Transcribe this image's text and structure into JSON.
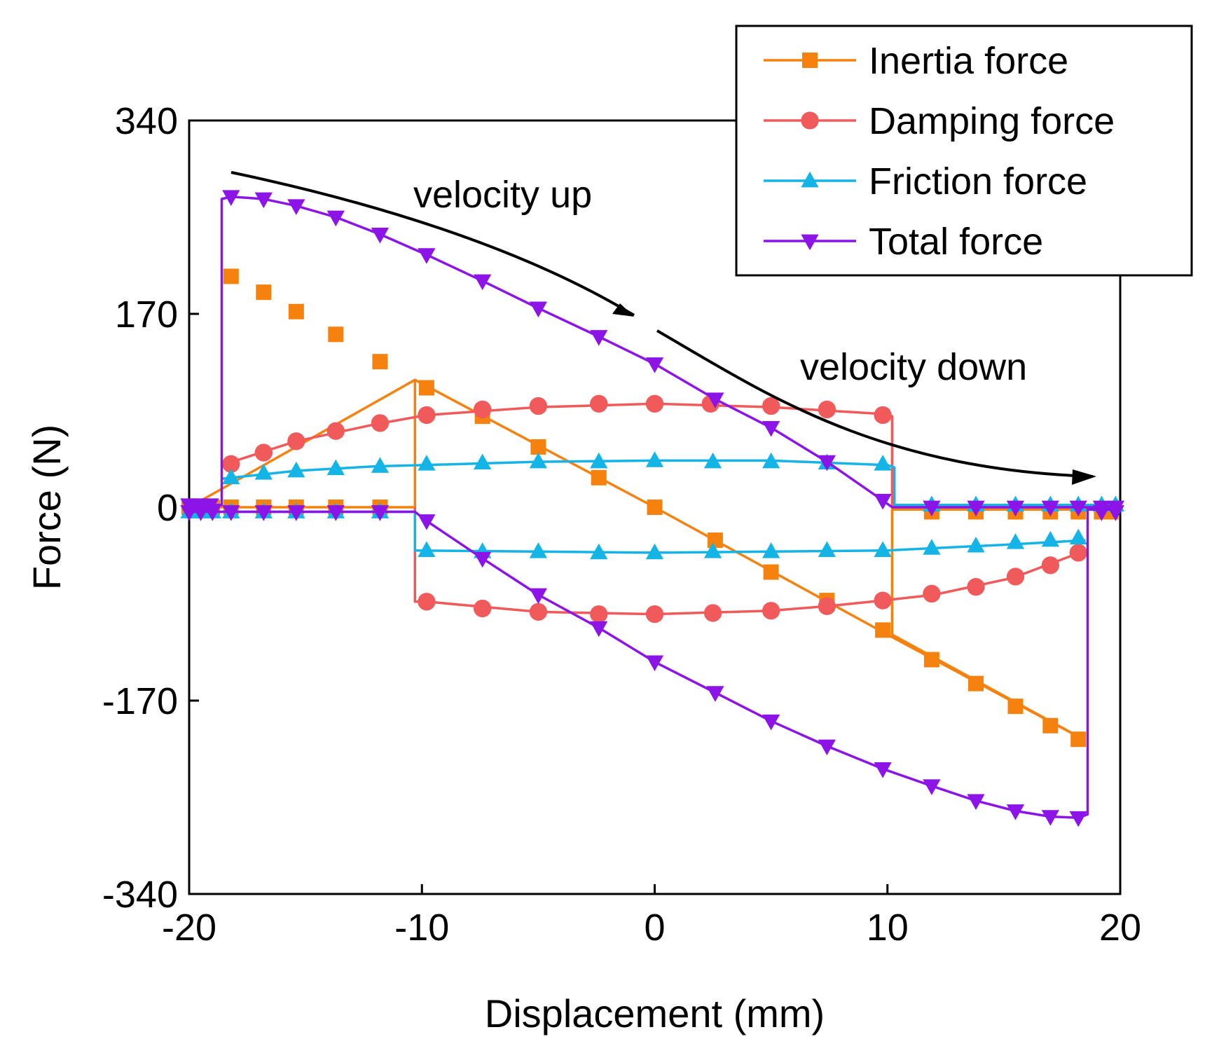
{
  "chart_data": {
    "type": "line",
    "title": "",
    "xlabel": "Displacement (mm)",
    "ylabel": "Force (N)",
    "xlim": [
      -20,
      20
    ],
    "ylim": [
      -340,
      340
    ],
    "xticks": [
      "-20",
      "-10",
      "0",
      "10",
      "20"
    ],
    "yticks": [
      "-340",
      "-170",
      "0",
      "170",
      "340"
    ],
    "legend_position": "top-right",
    "annotations": {
      "velocity_up": "velocity up",
      "velocity_down": "velocity down"
    },
    "series": [
      {
        "name": "Inertia force",
        "color": "#F5820F",
        "marker": "square",
        "segments": [
          [
            [
              -20,
              0
            ],
            [
              -10.3,
              0
            ]
          ],
          [
            [
              -10.3,
              112
            ],
            [
              -20,
              0
            ]
          ],
          [
            [
              -10.3,
              0
            ],
            [
              -10.3,
              112
            ],
            [
              0,
              0
            ],
            [
              10,
              -112
            ],
            [
              18.5,
              -205
            ]
          ],
          [
            [
              18.5,
              -205
            ],
            [
              10.2,
              -112
            ],
            [
              10.2,
              -2
            ],
            [
              20,
              -2
            ]
          ]
        ],
        "markers": [
          [
            -20,
            0
          ],
          [
            -19.5,
            0
          ],
          [
            -19,
            0
          ],
          [
            -18.2,
            0
          ],
          [
            -16.8,
            0
          ],
          [
            -15.4,
            0
          ],
          [
            -13.7,
            0
          ],
          [
            -11.8,
            0
          ],
          [
            -18.2,
            203
          ],
          [
            -16.8,
            189
          ],
          [
            -15.4,
            172
          ],
          [
            -13.7,
            152
          ],
          [
            -11.8,
            128
          ],
          [
            -9.8,
            105
          ],
          [
            -7.4,
            80
          ],
          [
            -5,
            53
          ],
          [
            -2.4,
            26
          ],
          [
            0,
            0
          ],
          [
            2.6,
            -29
          ],
          [
            5,
            -57
          ],
          [
            7.4,
            -82
          ],
          [
            9.8,
            -108
          ],
          [
            11.9,
            -134
          ],
          [
            13.8,
            -155
          ],
          [
            15.5,
            -175
          ],
          [
            17,
            -192
          ],
          [
            18.2,
            -204
          ],
          [
            11.9,
            -4
          ],
          [
            13.8,
            -4
          ],
          [
            15.5,
            -4
          ],
          [
            17,
            -4
          ],
          [
            18.2,
            -4
          ],
          [
            19.2,
            -4
          ],
          [
            19.6,
            -4
          ]
        ]
      },
      {
        "name": "Damping force",
        "color": "#F05A5A",
        "marker": "circle",
        "segments": [
          [
            [
              -18.6,
              37
            ],
            [
              -15.4,
              58
            ],
            [
              -12,
              73
            ],
            [
              -9.8,
              81
            ],
            [
              -5,
              88
            ],
            [
              0,
              91
            ],
            [
              5,
              88
            ],
            [
              9.8,
              82
            ],
            [
              10.2,
              80
            ],
            [
              10.2,
              0
            ]
          ],
          [
            [
              -10.3,
              0
            ],
            [
              -10.3,
              -83
            ],
            [
              -9.8,
              -83
            ],
            [
              -5,
              -92
            ],
            [
              0,
              -94
            ],
            [
              5,
              -91
            ],
            [
              7.4,
              -87
            ],
            [
              9.8,
              -82
            ],
            [
              12,
              -77
            ],
            [
              15.4,
              -62
            ],
            [
              18,
              -42
            ]
          ]
        ],
        "markers": [
          [
            -18.2,
            38
          ],
          [
            -16.8,
            48
          ],
          [
            -15.4,
            58
          ],
          [
            -13.7,
            67
          ],
          [
            -11.8,
            74
          ],
          [
            -9.8,
            81
          ],
          [
            -7.4,
            86
          ],
          [
            -5,
            89
          ],
          [
            -2.4,
            91
          ],
          [
            0,
            91
          ],
          [
            2.4,
            91
          ],
          [
            5,
            89
          ],
          [
            7.4,
            86
          ],
          [
            9.8,
            81
          ],
          [
            -9.8,
            -83
          ],
          [
            -7.4,
            -89
          ],
          [
            -5,
            -92
          ],
          [
            -2.4,
            -94
          ],
          [
            0,
            -94
          ],
          [
            2.5,
            -93
          ],
          [
            5,
            -91
          ],
          [
            7.4,
            -87
          ],
          [
            9.8,
            -82
          ],
          [
            11.9,
            -76
          ],
          [
            13.8,
            -70
          ],
          [
            15.5,
            -61
          ],
          [
            17,
            -51
          ],
          [
            18.2,
            -40
          ]
        ]
      },
      {
        "name": "Friction force",
        "color": "#14B4E6",
        "marker": "triangle-up",
        "segments": [
          [
            [
              -20,
              -4
            ],
            [
              -10.3,
              -4
            ],
            [
              -10.3,
              -38
            ],
            [
              -5,
              -39
            ],
            [
              0,
              -40
            ],
            [
              5,
              -39
            ],
            [
              10,
              -38
            ],
            [
              12,
              -36
            ],
            [
              15,
              -33
            ],
            [
              18.5,
              -29
            ]
          ],
          [
            [
              -18.6,
              25
            ],
            [
              -15.4,
              32
            ],
            [
              -12,
              36
            ],
            [
              -10,
              37
            ],
            [
              -5,
              40
            ],
            [
              0,
              41
            ],
            [
              5,
              41
            ],
            [
              10,
              37
            ],
            [
              10.3,
              35
            ],
            [
              10.3,
              2
            ],
            [
              20,
              2
            ]
          ]
        ],
        "markers": [
          [
            -20,
            -4
          ],
          [
            -19.5,
            -4
          ],
          [
            -19,
            -4
          ],
          [
            -18.2,
            -4
          ],
          [
            -16.8,
            -4
          ],
          [
            -15.4,
            -4
          ],
          [
            -13.7,
            -4
          ],
          [
            -11.8,
            -4
          ],
          [
            -18.2,
            26
          ],
          [
            -16.8,
            30
          ],
          [
            -15.4,
            32
          ],
          [
            -13.7,
            34
          ],
          [
            -11.8,
            36
          ],
          [
            -9.8,
            38
          ],
          [
            -7.4,
            39
          ],
          [
            -5,
            40
          ],
          [
            -2.4,
            40
          ],
          [
            0,
            41
          ],
          [
            2.5,
            40
          ],
          [
            5,
            40
          ],
          [
            7.4,
            39
          ],
          [
            9.8,
            38
          ],
          [
            -9.8,
            -38
          ],
          [
            -7.4,
            -39
          ],
          [
            -5,
            -39
          ],
          [
            -2.4,
            -40
          ],
          [
            0,
            -40
          ],
          [
            2.5,
            -39
          ],
          [
            5,
            -39
          ],
          [
            7.4,
            -38
          ],
          [
            9.8,
            -38
          ],
          [
            11.9,
            -36
          ],
          [
            13.8,
            -34
          ],
          [
            15.5,
            -31
          ],
          [
            17,
            -29
          ],
          [
            18.2,
            -27
          ],
          [
            11.9,
            2
          ],
          [
            13.8,
            2
          ],
          [
            15.5,
            2
          ],
          [
            17,
            2
          ],
          [
            18.2,
            2
          ],
          [
            19.2,
            2
          ],
          [
            19.8,
            2
          ]
        ]
      },
      {
        "name": "Total force",
        "color": "#8C14E6",
        "marker": "triangle-down",
        "segments": [
          [
            [
              -20,
              2
            ],
            [
              -18.6,
              2
            ],
            [
              -18.6,
              271
            ],
            [
              -18.2,
              273
            ],
            [
              -16.8,
              271
            ],
            [
              -15.4,
              265
            ],
            [
              -13.7,
              255
            ],
            [
              -11.8,
              240
            ],
            [
              -9.8,
              222
            ],
            [
              -7.4,
              199
            ],
            [
              -5,
              175
            ],
            [
              -2.4,
              150
            ],
            [
              0,
              126
            ],
            [
              2.6,
              95
            ],
            [
              5,
              70
            ],
            [
              7.4,
              40
            ],
            [
              9.8,
              6
            ],
            [
              10.2,
              0
            ],
            [
              20,
              0
            ]
          ],
          [
            [
              -20,
              -4
            ],
            [
              -10.3,
              -4
            ],
            [
              -9.8,
              -12
            ],
            [
              -7.4,
              -45
            ],
            [
              -5,
              -77
            ],
            [
              -2.4,
              -106
            ],
            [
              0,
              -136
            ],
            [
              2.6,
              -163
            ],
            [
              5,
              -188
            ],
            [
              7.4,
              -210
            ],
            [
              9.8,
              -230
            ],
            [
              11.9,
              -245
            ],
            [
              13.8,
              -258
            ],
            [
              15.5,
              -267
            ],
            [
              17,
              -272
            ],
            [
              18.2,
              -273
            ],
            [
              18.6,
              -270
            ],
            [
              18.6,
              -2
            ],
            [
              20,
              -2
            ]
          ]
        ],
        "markers": [
          [
            -20,
            2
          ],
          [
            -19.6,
            2
          ],
          [
            -19.1,
            2
          ],
          [
            -18.2,
            273
          ],
          [
            -16.8,
            271
          ],
          [
            -15.4,
            265
          ],
          [
            -13.7,
            255
          ],
          [
            -11.8,
            240
          ],
          [
            -9.8,
            222
          ],
          [
            -7.4,
            199
          ],
          [
            -5,
            175
          ],
          [
            -2.4,
            150
          ],
          [
            0,
            126
          ],
          [
            2.6,
            95
          ],
          [
            5,
            70
          ],
          [
            7.4,
            40
          ],
          [
            9.8,
            6
          ],
          [
            11.9,
            0
          ],
          [
            13.8,
            0
          ],
          [
            15.5,
            0
          ],
          [
            17,
            0
          ],
          [
            18.2,
            0
          ],
          [
            19.2,
            0
          ],
          [
            19.8,
            0
          ],
          [
            -20,
            -4
          ],
          [
            -19.5,
            -4
          ],
          [
            -19,
            -4
          ],
          [
            -18.2,
            -4
          ],
          [
            -16.8,
            -4
          ],
          [
            -15.4,
            -4
          ],
          [
            -13.7,
            -4
          ],
          [
            -11.8,
            -4
          ],
          [
            -9.8,
            -12
          ],
          [
            -7.4,
            -45
          ],
          [
            -5,
            -77
          ],
          [
            -2.4,
            -106
          ],
          [
            0,
            -136
          ],
          [
            2.6,
            -163
          ],
          [
            5,
            -188
          ],
          [
            7.4,
            -210
          ],
          [
            9.8,
            -230
          ],
          [
            11.9,
            -245
          ],
          [
            13.8,
            -258
          ],
          [
            15.5,
            -267
          ],
          [
            17,
            -272
          ],
          [
            18.2,
            -273
          ],
          [
            19.2,
            -4
          ],
          [
            19.8,
            -4
          ]
        ]
      }
    ]
  }
}
